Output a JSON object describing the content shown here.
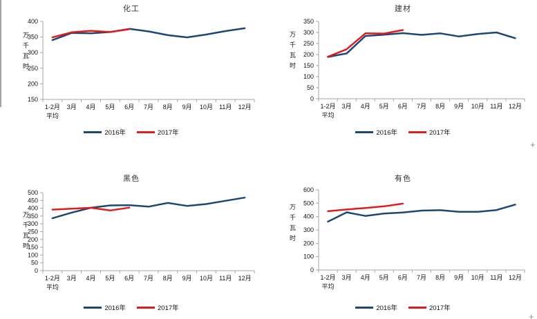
{
  "page": {
    "background_color": "#ffffff"
  },
  "cursor": {
    "glyph": "+",
    "color": "#8a8a8a"
  },
  "axis_style": {
    "line_color": "#a6a6a6",
    "label_color": "#111111"
  },
  "legend": {
    "series_2016": "2016年",
    "series_2017": "2017年"
  },
  "chart_data": [
    {
      "type": "line",
      "title": "化工",
      "ylabel": "万千瓦时",
      "categories": [
        "1-2月",
        "3月",
        "4月",
        "5月",
        "6月",
        "7月",
        "8月",
        "9月",
        "10月",
        "11月",
        "12月"
      ],
      "first_category_line2": "平均",
      "ylim": [
        150,
        400
      ],
      "ytick_step": 50,
      "grid": false,
      "legend_position": "bottom",
      "series": [
        {
          "name": "2016年",
          "color": "#1B4775",
          "values": [
            340,
            363,
            362,
            366,
            376,
            368,
            356,
            349,
            358,
            369,
            378
          ]
        },
        {
          "name": "2017年",
          "color": "#E01B1B",
          "values": [
            349,
            365,
            370,
            366,
            375
          ]
        }
      ]
    },
    {
      "type": "line",
      "title": "建材",
      "ylabel": "万千瓦时",
      "categories": [
        "1-2月",
        "3月",
        "4月",
        "5月",
        "6月",
        "7月",
        "8月",
        "9月",
        "10月",
        "11月",
        "12月"
      ],
      "first_category_line2": "平均",
      "ylim": [
        0,
        350
      ],
      "ytick_step": 50,
      "grid": false,
      "legend_position": "bottom",
      "series": [
        {
          "name": "2016年",
          "color": "#1B4775",
          "values": [
            189,
            205,
            284,
            290,
            297,
            289,
            296,
            282,
            293,
            300,
            274
          ]
        },
        {
          "name": "2017年",
          "color": "#E01B1B",
          "values": [
            190,
            224,
            296,
            295,
            311
          ]
        }
      ]
    },
    {
      "type": "line",
      "title": "黑色",
      "ylabel": "万千瓦时",
      "categories": [
        "1-2月",
        "3月",
        "4月",
        "5月",
        "6月",
        "7月",
        "8月",
        "9月",
        "10月",
        "11月",
        "12月"
      ],
      "first_category_line2": "平均",
      "ylim": [
        0,
        500
      ],
      "ytick_step": 50,
      "grid": false,
      "legend_position": "bottom",
      "series": [
        {
          "name": "2016年",
          "color": "#1B4775",
          "values": [
            336,
            372,
            403,
            418,
            420,
            410,
            434,
            415,
            427,
            448,
            468
          ]
        },
        {
          "name": "2017年",
          "color": "#E01B1B",
          "values": [
            391,
            397,
            403,
            386,
            404
          ]
        }
      ]
    },
    {
      "type": "line",
      "title": "有色",
      "ylabel": "万千瓦时",
      "categories": [
        "1-2月",
        "3月",
        "4月",
        "5月",
        "6月",
        "7月",
        "8月",
        "9月",
        "10月",
        "11月",
        "12月"
      ],
      "first_category_line2": "平均",
      "ylim": [
        0,
        600
      ],
      "ytick_step": 100,
      "grid": false,
      "legend_position": "bottom",
      "series": [
        {
          "name": "2016年",
          "color": "#1B4775",
          "values": [
            362,
            432,
            405,
            423,
            431,
            445,
            448,
            436,
            436,
            449,
            490
          ]
        },
        {
          "name": "2017年",
          "color": "#E01B1B",
          "values": [
            440,
            453,
            464,
            477,
            497
          ]
        }
      ]
    }
  ]
}
